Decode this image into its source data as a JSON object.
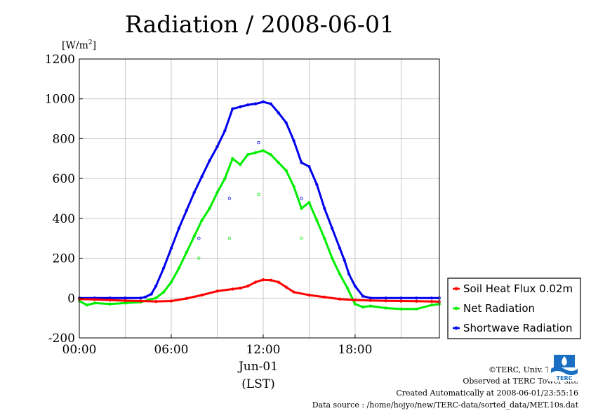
{
  "chart_data": {
    "type": "line",
    "title": "Radiation / 2008-06-01",
    "yunit": "[W/m2]",
    "yunit_base": "[W/m",
    "yunit_sup": "2",
    "yunit_close": "]",
    "xlabel_date": "Jun-01",
    "xlabel": "(LST)",
    "xlim": [
      0,
      23.5
    ],
    "ylim": [
      -200,
      1200
    ],
    "yticks": [
      -200,
      0,
      200,
      400,
      600,
      800,
      1000,
      1200
    ],
    "xticks": [
      {
        "hour": 0,
        "label": "00:00"
      },
      {
        "hour": 6,
        "label": "06:00"
      },
      {
        "hour": 12,
        "label": "12:00"
      },
      {
        "hour": 18,
        "label": "18:00"
      }
    ],
    "grid": true,
    "legend_position": "right",
    "series": [
      {
        "name": "Soil Heat Flux 0.02m",
        "color": "#ff0000",
        "x": [
          0,
          1,
          2,
          3,
          4,
          5,
          6,
          7,
          8,
          9,
          10,
          10.5,
          11,
          11.5,
          12,
          12.5,
          13,
          13.5,
          14,
          15,
          16,
          17,
          18,
          19,
          20,
          21,
          22,
          23,
          23.5
        ],
        "y": [
          -5,
          -7,
          -10,
          -13,
          -15,
          -17,
          -15,
          -2,
          15,
          35,
          45,
          50,
          60,
          80,
          92,
          90,
          80,
          55,
          30,
          15,
          5,
          -5,
          -10,
          -12,
          -14,
          -15,
          -16,
          -17,
          -18
        ]
      },
      {
        "name": "Net Radiation",
        "color": "#00ee00",
        "x": [
          0,
          0.5,
          1,
          2,
          3,
          4,
          4.5,
          5,
          5.5,
          6,
          6.5,
          7,
          7.5,
          8,
          8.5,
          9,
          9.5,
          10,
          10.5,
          11,
          11.5,
          12,
          12.5,
          13,
          13.5,
          14,
          14.5,
          15,
          15.5,
          16,
          16.5,
          17,
          17.5,
          18,
          18.5,
          19,
          20,
          21,
          22,
          23,
          23.5
        ],
        "y": [
          -15,
          -35,
          -25,
          -30,
          -25,
          -20,
          -10,
          0,
          30,
          80,
          150,
          230,
          310,
          390,
          450,
          530,
          600,
          700,
          670,
          720,
          730,
          740,
          720,
          680,
          640,
          560,
          450,
          480,
          390,
          300,
          200,
          120,
          50,
          -30,
          -45,
          -40,
          -50,
          -55,
          -55,
          -35,
          -30
        ]
      },
      {
        "name": "Shortwave Radiation",
        "color": "#0000ee",
        "x": [
          0,
          1,
          2,
          3,
          4,
          4.3,
          4.7,
          5,
          5.5,
          6,
          6.5,
          7,
          7.5,
          8,
          8.5,
          9,
          9.5,
          10,
          10.5,
          11,
          11.5,
          12,
          12.5,
          13,
          13.5,
          14,
          14.5,
          15,
          15.5,
          16,
          16.5,
          17,
          17.3,
          17.6,
          18,
          18.5,
          19,
          20,
          21,
          22,
          23,
          23.5
        ],
        "y": [
          0,
          0,
          0,
          0,
          0,
          5,
          20,
          60,
          150,
          250,
          350,
          440,
          530,
          610,
          690,
          760,
          840,
          950,
          960,
          970,
          975,
          985,
          975,
          930,
          880,
          790,
          680,
          660,
          570,
          450,
          350,
          250,
          190,
          120,
          60,
          10,
          0,
          0,
          0,
          0,
          0,
          0
        ]
      }
    ],
    "scatter_dips": [
      {
        "series": 2,
        "x": 7.8,
        "y": 300
      },
      {
        "series": 2,
        "x": 9.8,
        "y": 500
      },
      {
        "series": 2,
        "x": 11.7,
        "y": 780
      },
      {
        "series": 2,
        "x": 14.5,
        "y": 500
      },
      {
        "series": 1,
        "x": 7.8,
        "y": 200
      },
      {
        "series": 1,
        "x": 9.8,
        "y": 300
      },
      {
        "series": 1,
        "x": 11.7,
        "y": 520
      },
      {
        "series": 1,
        "x": 14.5,
        "y": 300
      }
    ]
  },
  "footer": {
    "copyright": "©TERC, Univ. Tsukuba",
    "observed": "Observed at TERC Tower site",
    "created": "Created Automatically at 2008-06-01/23:55:16",
    "source": "Data source : /home/hojyo/new/TERC-data/sorted_data/MET.10s.dat"
  },
  "logo": {
    "label": "TERC",
    "icon": "terc-logo"
  }
}
